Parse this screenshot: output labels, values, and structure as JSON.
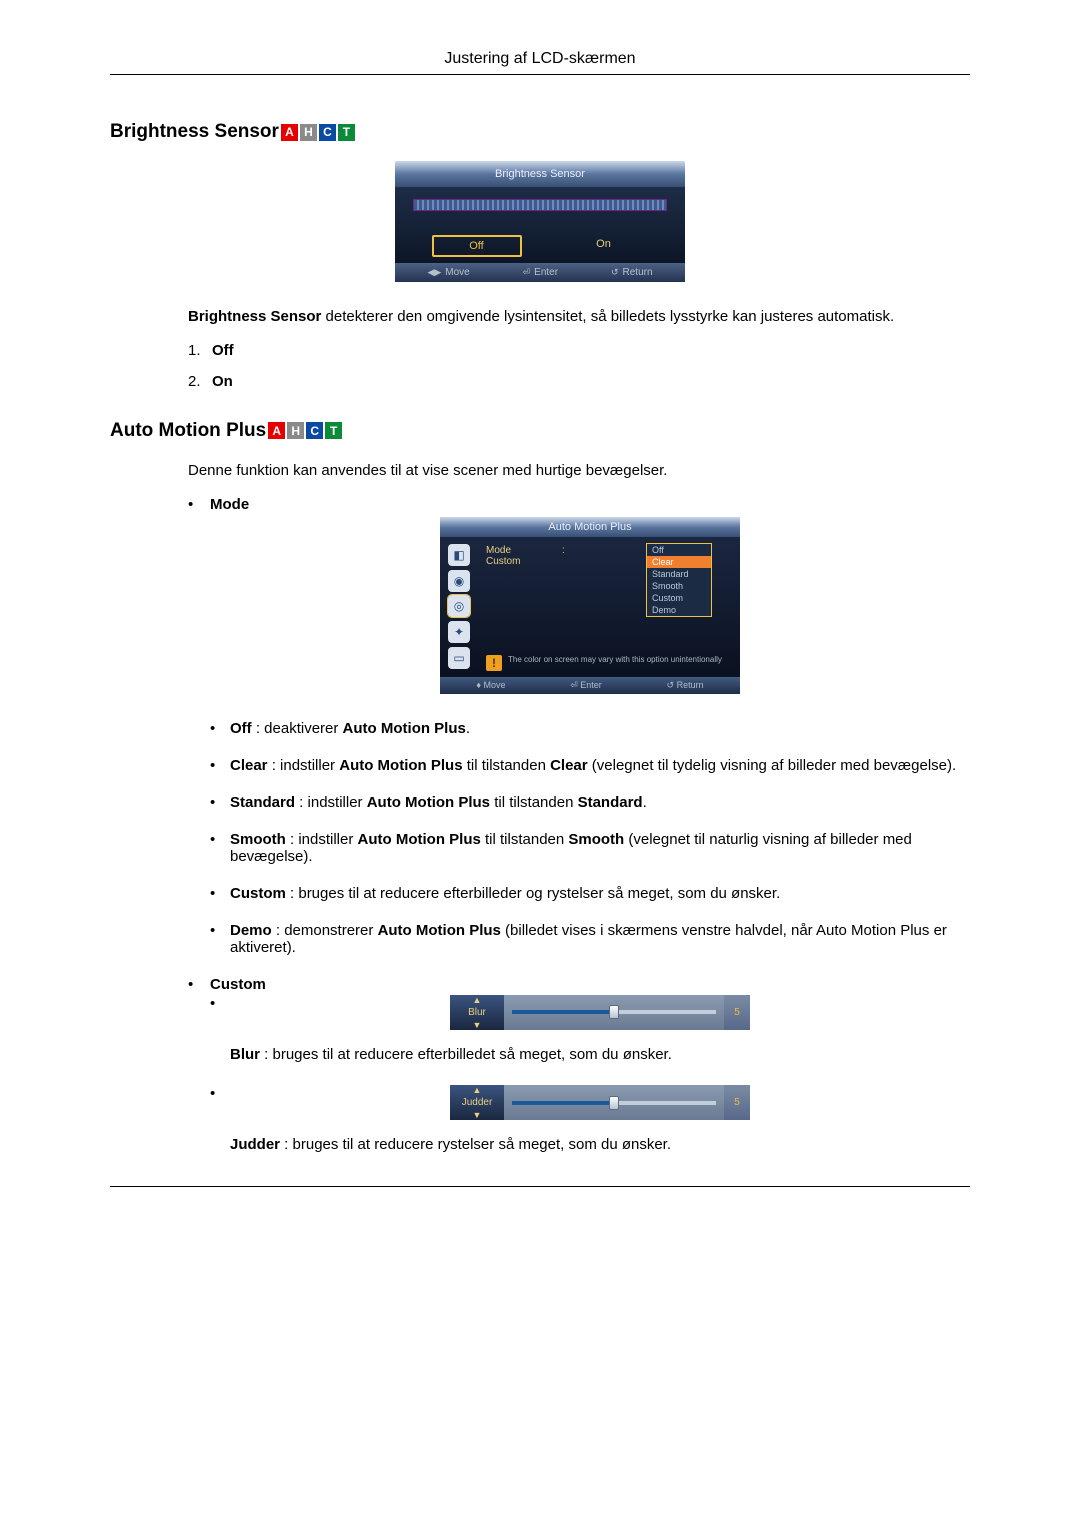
{
  "header": {
    "title": "Justering af LCD-skærmen"
  },
  "badges": [
    "A",
    "H",
    "C",
    "T"
  ],
  "brightness_sensor": {
    "heading": "Brightness Sensor",
    "osd": {
      "title": "Brightness Sensor",
      "option_off": "Off",
      "option_on": "On",
      "footer_move": "Move",
      "footer_enter": "Enter",
      "footer_return": "Return"
    },
    "desc": {
      "b": "Brightness Sensor",
      "rest": " detekterer den omgivende lysintensitet, så billedets lysstyrke kan justeres automatisk."
    },
    "list": [
      {
        "n": "1.",
        "b": "Off"
      },
      {
        "n": "2.",
        "b": "On"
      }
    ]
  },
  "auto_motion_plus": {
    "heading": "Auto Motion Plus",
    "intro": "Denne funktion kan anvendes til at vise scener med hurtige bevægelser.",
    "mode_label": "Mode",
    "osd": {
      "title": "Auto Motion Plus",
      "row_mode": "Mode",
      "row_custom": "Custom",
      "opts": [
        "Off",
        "Clear",
        "Standard",
        "Smooth",
        "Custom",
        "Demo"
      ],
      "warn": "The color on screen may vary with this option unintentionally",
      "footer_move": "Move",
      "footer_enter": "Enter",
      "footer_return": "Return"
    },
    "mode_items": [
      {
        "b": "Off",
        "mid": " : deaktiverer ",
        "b2": "Auto Motion Plus",
        "rest": "."
      },
      {
        "b": "Clear",
        "mid": " : indstiller ",
        "b2": "Auto Motion Plus",
        "mid2": " til tilstanden ",
        "b3": "Clear",
        "rest": " (velegnet til tydelig visning af billeder med bevægelse)."
      },
      {
        "b": "Standard",
        "mid": " : indstiller ",
        "b2": "Auto Motion Plus",
        "mid2": " til tilstanden ",
        "b3": "Standard",
        "rest": "."
      },
      {
        "b": "Smooth",
        "mid": " : indstiller ",
        "b2": "Auto Motion Plus",
        "mid2": " til tilstanden ",
        "b3": "Smooth",
        "rest": " (velegnet til naturlig visning af billeder med bevægelse)."
      },
      {
        "b": "Custom",
        "mid": " : bruges til at reducere efterbilleder og rystelser så meget, som du ønsker.",
        "b2": "",
        "mid2": "",
        "b3": "",
        "rest": ""
      },
      {
        "b": "Demo",
        "mid": " : demonstrerer ",
        "b2": "Auto Motion Plus",
        "mid2": "",
        "b3": "",
        "rest": " (billedet vises i skærmens venstre halvdel, når Auto Motion Plus er aktiveret)."
      }
    ],
    "custom_label": "Custom",
    "blur": {
      "slider_label": "Blur",
      "slider_value": "5",
      "desc_b": "Blur",
      "desc_rest": " : bruges til at reducere efterbilledet så meget, som du ønsker."
    },
    "judder": {
      "slider_label": "Judder",
      "slider_value": "5",
      "desc_b": "Judder",
      "desc_rest": " : bruges til at reducere rystelser så meget, som du ønsker."
    }
  },
  "colors": {
    "badge_a": "#e60000",
    "badge_h": "#8a8a8a",
    "badge_c": "#0b4aa2",
    "badge_t": "#0b8a3a"
  }
}
